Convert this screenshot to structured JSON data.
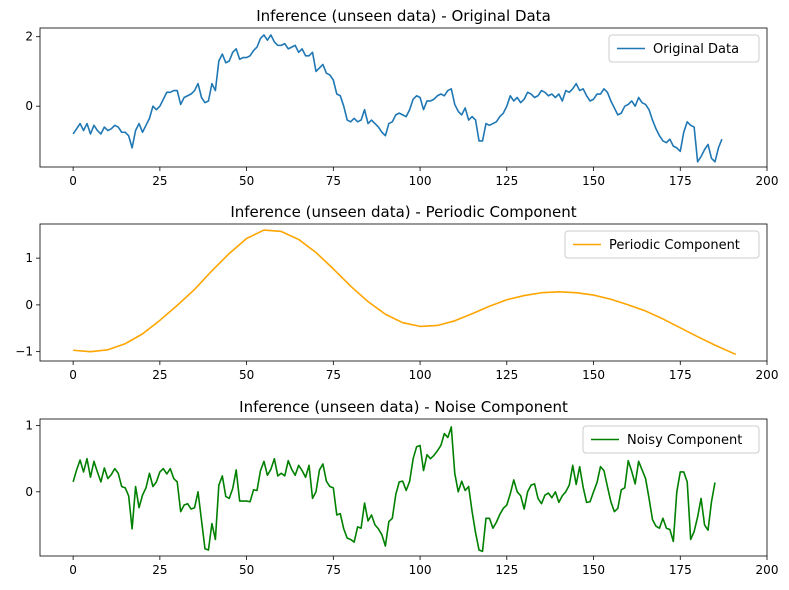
{
  "chart_data": [
    {
      "type": "line",
      "title": "Inference (unseen data) - Original Data",
      "xlabel": "",
      "ylabel": "",
      "xlim": [
        -9.55,
        200
      ],
      "ylim": [
        -1.75,
        2.25
      ],
      "xticks": [
        0,
        25,
        50,
        75,
        100,
        125,
        150,
        175,
        200
      ],
      "yticks": [
        0,
        2
      ],
      "grid": false,
      "legend": "top-right",
      "series": [
        {
          "name": "Original Data",
          "color": "#1f77b4",
          "x_start": 0,
          "x_step": 1,
          "values": [
            -0.8,
            -0.65,
            -0.5,
            -0.7,
            -0.5,
            -0.8,
            -0.55,
            -0.7,
            -0.8,
            -0.6,
            -0.7,
            -0.65,
            -0.55,
            -0.6,
            -0.75,
            -0.75,
            -0.85,
            -1.2,
            -0.7,
            -0.5,
            -0.75,
            -0.55,
            -0.35,
            0.0,
            -0.1,
            0.0,
            0.2,
            0.4,
            0.4,
            0.45,
            0.45,
            0.05,
            0.25,
            0.3,
            0.35,
            0.45,
            0.65,
            0.25,
            0.1,
            0.15,
            0.65,
            0.45,
            1.3,
            1.5,
            1.25,
            1.3,
            1.55,
            1.65,
            1.35,
            1.4,
            1.4,
            1.45,
            1.6,
            1.7,
            1.95,
            2.05,
            1.9,
            2.05,
            1.85,
            1.75,
            1.75,
            1.8,
            1.65,
            1.7,
            1.75,
            1.55,
            1.65,
            1.45,
            1.45,
            1.55,
            1.0,
            1.1,
            1.2,
            0.95,
            0.9,
            0.75,
            0.35,
            0.3,
            0.0,
            -0.4,
            -0.45,
            -0.35,
            -0.45,
            -0.4,
            -0.1,
            -0.5,
            -0.4,
            -0.5,
            -0.6,
            -0.75,
            -0.85,
            -0.5,
            -0.45,
            -0.25,
            -0.2,
            -0.25,
            -0.3,
            -0.1,
            0.2,
            0.3,
            0.25,
            -0.1,
            0.15,
            0.15,
            0.2,
            0.3,
            0.35,
            0.3,
            0.45,
            0.5,
            0.05,
            -0.15,
            -0.25,
            -0.05,
            -0.4,
            -0.3,
            -0.4,
            -1.0,
            -1.0,
            -0.5,
            -0.55,
            -0.5,
            -0.45,
            -0.3,
            -0.2,
            0.0,
            0.3,
            0.15,
            0.25,
            0.1,
            0.2,
            0.4,
            0.35,
            0.25,
            0.3,
            0.45,
            0.4,
            0.3,
            0.35,
            0.25,
            0.35,
            0.15,
            0.45,
            0.4,
            0.5,
            0.65,
            0.45,
            0.5,
            0.3,
            0.15,
            0.2,
            0.35,
            0.35,
            0.5,
            0.4,
            0.15,
            -0.05,
            -0.25,
            -0.2,
            0.0,
            0.05,
            0.15,
            0.0,
            0.25,
            0.1,
            0.05,
            -0.1,
            -0.4,
            -0.65,
            -0.85,
            -1.0,
            -1.05,
            -0.95,
            -1.15,
            -1.2,
            -1.3,
            -0.75,
            -0.45,
            -0.55,
            -0.6,
            -1.6,
            -1.45,
            -1.25,
            -1.1,
            -1.5,
            -1.6,
            -1.2,
            -0.95
          ]
        }
      ]
    },
    {
      "type": "line",
      "title": "Inference (unseen data) - Periodic Component",
      "xlabel": "",
      "ylabel": "",
      "xlim": [
        -9.55,
        200
      ],
      "ylim": [
        -1.2,
        1.73
      ],
      "xticks": [
        0,
        25,
        50,
        75,
        100,
        125,
        150,
        175,
        200
      ],
      "yticks": [
        -1,
        0,
        1
      ],
      "grid": false,
      "legend": "top-right",
      "series": [
        {
          "name": "Periodic Component",
          "color": "#ffa500",
          "x": [
            0,
            5,
            10,
            15,
            20,
            25,
            30,
            35,
            40,
            45,
            50,
            55,
            60,
            65,
            70,
            75,
            80,
            85,
            90,
            95,
            100,
            105,
            110,
            115,
            120,
            125,
            130,
            135,
            140,
            145,
            150,
            155,
            160,
            165,
            170,
            175,
            180,
            185,
            191
          ],
          "values": [
            -0.97,
            -1.0,
            -0.96,
            -0.83,
            -0.62,
            -0.33,
            -0.01,
            0.33,
            0.73,
            1.1,
            1.42,
            1.6,
            1.57,
            1.4,
            1.12,
            0.77,
            0.4,
            0.07,
            -0.2,
            -0.38,
            -0.46,
            -0.44,
            -0.34,
            -0.19,
            -0.03,
            0.11,
            0.2,
            0.26,
            0.28,
            0.26,
            0.21,
            0.12,
            0.0,
            -0.13,
            -0.3,
            -0.49,
            -0.68,
            -0.86,
            -1.06
          ]
        }
      ]
    },
    {
      "type": "line",
      "title": "Inference (unseen data) - Noise Component",
      "xlabel": "",
      "ylabel": "",
      "xlim": [
        -9.55,
        200
      ],
      "ylim": [
        -0.97,
        1.1
      ],
      "xticks": [
        0,
        25,
        50,
        75,
        100,
        125,
        150,
        175,
        200
      ],
      "yticks": [
        0,
        1
      ],
      "grid": false,
      "legend": "top-right",
      "series": [
        {
          "name": "Noisy Component",
          "color": "#008000",
          "x_start": 0,
          "x_step": 1,
          "values": [
            0.15,
            0.33,
            0.48,
            0.3,
            0.5,
            0.22,
            0.46,
            0.3,
            0.15,
            0.36,
            0.2,
            0.26,
            0.35,
            0.28,
            0.08,
            0.06,
            -0.06,
            -0.56,
            0.08,
            -0.24,
            -0.05,
            0.06,
            0.28,
            0.08,
            0.15,
            0.3,
            0.35,
            0.27,
            0.35,
            0.2,
            0.15,
            -0.3,
            -0.2,
            -0.18,
            -0.26,
            -0.24,
            0.0,
            -0.43,
            -0.86,
            -0.88,
            -0.48,
            -0.72,
            0.1,
            0.24,
            -0.07,
            -0.1,
            0.05,
            0.33,
            -0.14,
            -0.14,
            -0.14,
            -0.15,
            0.03,
            0.02,
            0.32,
            0.46,
            0.25,
            0.34,
            0.5,
            0.24,
            0.28,
            0.24,
            0.47,
            0.34,
            0.25,
            0.4,
            0.32,
            0.22,
            0.4,
            -0.1,
            0.0,
            0.33,
            0.42,
            0.16,
            0.08,
            0.06,
            -0.35,
            -0.33,
            -0.56,
            -0.7,
            -0.72,
            -0.76,
            -0.53,
            -0.55,
            -0.17,
            -0.44,
            -0.35,
            -0.5,
            -0.56,
            -0.65,
            -0.82,
            -0.45,
            -0.4,
            -0.04,
            0.15,
            0.16,
            0.02,
            0.16,
            0.5,
            0.68,
            0.7,
            0.32,
            0.56,
            0.5,
            0.55,
            0.62,
            0.7,
            0.88,
            0.82,
            0.98,
            0.28,
            0.0,
            0.16,
            0.02,
            0.08,
            -0.3,
            -0.62,
            -0.88,
            -0.9,
            -0.4,
            -0.4,
            -0.55,
            -0.46,
            -0.34,
            -0.25,
            -0.2,
            -0.03,
            0.18,
            0.0,
            -0.06,
            -0.26,
            0.0,
            0.1,
            0.12,
            -0.1,
            -0.18,
            -0.05,
            -0.02,
            -0.09,
            0.0,
            -0.16,
            -0.06,
            0.0,
            0.1,
            0.4,
            0.11,
            0.38,
            0.07,
            -0.16,
            -0.15,
            0.0,
            0.14,
            0.38,
            0.32,
            0.08,
            -0.15,
            -0.3,
            -0.25,
            0.03,
            0.06,
            0.47,
            0.31,
            0.12,
            0.46,
            0.33,
            0.2,
            -0.1,
            -0.42,
            -0.52,
            -0.55,
            -0.4,
            -0.55,
            -0.57,
            -0.75,
            0.0,
            0.3,
            0.3,
            0.15,
            -0.72,
            -0.6,
            -0.38,
            -0.1,
            -0.5,
            -0.58,
            -0.15,
            0.14
          ]
        }
      ]
    }
  ]
}
